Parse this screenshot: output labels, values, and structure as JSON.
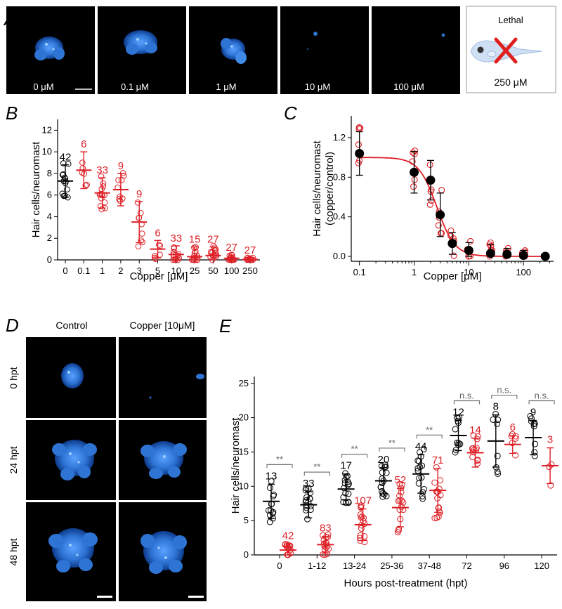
{
  "colors": {
    "control": "#000000",
    "copper": "#dd1f26",
    "tile": "#000000",
    "cell": "#2e74d4"
  },
  "panel_a": {
    "label": "A",
    "tiles": [
      "0 μM",
      "0.1 μM",
      "1 μM",
      "10 μM",
      "100 μM"
    ],
    "lethal": {
      "title": "Lethal",
      "conc": "250 μM"
    }
  },
  "panel_d": {
    "label": "D",
    "columns": [
      "Control",
      "Copper [10μM]"
    ],
    "rows": [
      "0 hpt",
      "24 hpt",
      "48 hpt"
    ]
  },
  "chart_data": [
    {
      "panel": "B",
      "type": "scatter",
      "xlabel": "Copper [μM]",
      "ylabel": "Hair cells/neuromast",
      "ylim": [
        0,
        13
      ],
      "yticks": [
        "0",
        "2",
        "4",
        "6",
        "8",
        "10",
        "12"
      ],
      "categories": [
        "0",
        "0.1",
        "1",
        "2",
        "3",
        "5",
        "10",
        "25",
        "50",
        "100",
        "250"
      ],
      "means": [
        7.3,
        8.3,
        6.2,
        6.5,
        3.5,
        1.0,
        0.5,
        0.3,
        0.4,
        0.15,
        0.05
      ],
      "sd": [
        1.5,
        1.7,
        1.4,
        1.5,
        1.9,
        0.8,
        0.8,
        0.9,
        0.8,
        0.3,
        0.15
      ],
      "n": [
        "42",
        "6",
        "33",
        "9",
        "9",
        "6",
        "33",
        "15",
        "27",
        "27",
        "27"
      ]
    },
    {
      "panel": "C",
      "type": "scatter",
      "xscale": "log",
      "xlabel": "Copper [μM]",
      "ylabel": "Hair cells/neuromast",
      "ylabel2": "(copper/control)",
      "ylim": [
        -0.05,
        1.42
      ],
      "yticks": [
        "0.0",
        "0.4",
        "0.8",
        "1.2"
      ],
      "xticks": [
        "0.1",
        "1",
        "10",
        "100"
      ],
      "x": [
        0.1,
        1,
        2,
        3,
        5,
        10,
        25,
        50,
        100,
        250
      ],
      "means": [
        1.04,
        0.85,
        0.77,
        0.42,
        0.13,
        0.06,
        0.03,
        0.02,
        0.01,
        0.0
      ],
      "sd": [
        0.22,
        0.21,
        0.2,
        0.22,
        0.11,
        0.08,
        0.09,
        0.06,
        0.05,
        0.02
      ],
      "fit": {
        "top": 1.0,
        "ic50": 2.6,
        "hill": 2.6
      }
    },
    {
      "panel": "E",
      "type": "scatter",
      "xlabel": "Hours post-treatment (hpt)",
      "ylabel": "Hair cells/neuromast",
      "ylim": [
        0,
        26
      ],
      "yticks": [
        "0",
        "5",
        "10",
        "15",
        "20",
        "25"
      ],
      "categories": [
        "0",
        "1-12",
        "13-24",
        "25-36",
        "37-48",
        "72",
        "96",
        "120"
      ],
      "series": [
        {
          "name": "Control",
          "means": [
            7.8,
            7.3,
            9.6,
            10.8,
            11.8,
            17.4,
            16.6,
            17.1
          ],
          "sd": [
            2.5,
            1.9,
            2.2,
            1.9,
            2.8,
            2.2,
            3.8,
            2.5
          ],
          "n": [
            "13",
            "33",
            "17",
            "20",
            "44",
            "12",
            "8",
            "9"
          ]
        },
        {
          "name": "Copper",
          "means": [
            0.7,
            1.5,
            4.4,
            6.9,
            9.4,
            14.9,
            16.1,
            13.0
          ],
          "sd": [
            0.9,
            1.2,
            2.3,
            2.8,
            3.2,
            2.1,
            1.3,
            2.6
          ],
          "n": [
            "42",
            "83",
            "107",
            "52",
            "71",
            "14",
            "6",
            "3"
          ]
        }
      ],
      "significance": [
        "**",
        "**",
        "**",
        "**",
        "**",
        "n.s.",
        "n.s.",
        "n.s."
      ]
    }
  ]
}
